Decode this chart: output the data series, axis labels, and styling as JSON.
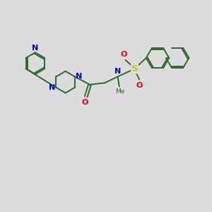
{
  "bg_color": "#dcdcdc",
  "bond_color": "#2d6b2d",
  "N_color": "#0000ee",
  "O_color": "#ee0000",
  "S_color": "#cccc00",
  "bond_lw": 1.4,
  "label_fontsize": 7.5,
  "figsize": [
    3.0,
    3.0
  ],
  "dpi": 100,
  "xlim": [
    0,
    10
  ],
  "ylim": [
    0,
    10
  ]
}
